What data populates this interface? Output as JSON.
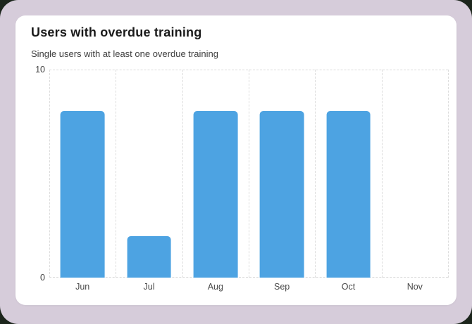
{
  "card": {
    "title": "Users with overdue training",
    "subtitle": "Single users with at least one overdue training"
  },
  "chart_data": {
    "type": "bar",
    "title": "Users with overdue training",
    "subtitle": "Single users with at least one overdue training",
    "categories": [
      "Jun",
      "Jul",
      "Aug",
      "Sep",
      "Oct",
      "Nov"
    ],
    "values": [
      8,
      2,
      8,
      8,
      8,
      0
    ],
    "xlabel": "",
    "ylabel": "",
    "ylim": [
      0,
      10
    ],
    "yticks": [
      0,
      10
    ],
    "grid": "dashed vertical category boundaries plus dashed lines at y=0 and y=10",
    "legend": "none",
    "bar_color": "#4da3e2"
  },
  "colors": {
    "page_background": "#d6ccda",
    "outside_corners": "#1c251c",
    "card_background": "#ffffff",
    "bar": "#4da3e2",
    "gridline": "#dcdcdc",
    "title_text": "#1a1a1a",
    "subtitle_text": "#3d3d3d",
    "axis_text": "#464646"
  }
}
